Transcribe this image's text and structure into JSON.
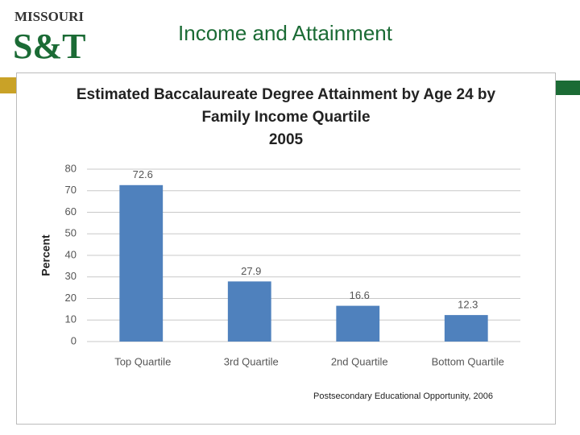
{
  "slide": {
    "title": "Income and Attainment",
    "logo": {
      "top": "MISSOURI",
      "main": "S&T"
    }
  },
  "chart_data": {
    "type": "bar",
    "title": [
      "Estimated Baccalaureate Degree Attainment by Age 24 by",
      "Family Income Quartile",
      "2005"
    ],
    "y_label": "Percent",
    "categories": [
      "Top Quartile",
      "3rd Quartile",
      "2nd Quartile",
      "Bottom Quartile"
    ],
    "values": [
      72.6,
      27.9,
      16.6,
      12.3
    ],
    "color": "#4f81bd",
    "ylim": [
      0,
      80
    ],
    "yticks": [
      0,
      10,
      20,
      30,
      40,
      50,
      60,
      70,
      80
    ],
    "grid": true,
    "source": "Postsecondary Educational Opportunity, 2006"
  }
}
